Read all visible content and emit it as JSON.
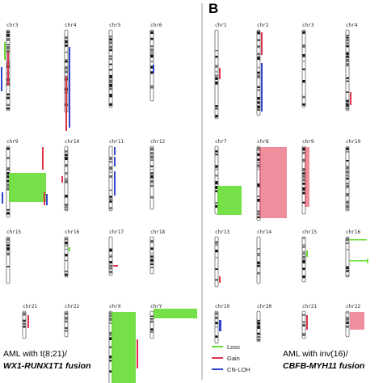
{
  "panel_b": {
    "letter": "B"
  },
  "caption_a": {
    "line1": "AML with t(8;21)/",
    "line2": "WX1-RUNX1T1 fusion"
  },
  "caption_b": {
    "line1": "AML with inv(16)/",
    "line2": "CBFB-MYH11 fusion"
  },
  "legend": {
    "items": [
      {
        "label": "Loss",
        "color": "#66dd33"
      },
      {
        "label": "Gain",
        "color": "#e0334d"
      },
      {
        "label": "CN-LOH",
        "color": "#3344cc"
      }
    ]
  },
  "colors": {
    "loss": "#66dd33",
    "gain": "#e0334d",
    "cnloh": "#3344cc",
    "divider": "#999999"
  },
  "panel_a": {
    "chromosomes": [
      {
        "name": "chr3"
      },
      {
        "name": "chr4"
      },
      {
        "name": "chr5"
      },
      {
        "name": "chr6"
      },
      {
        "name": "chr9"
      },
      {
        "name": "chr10"
      },
      {
        "name": "chr11"
      },
      {
        "name": "chr12"
      },
      {
        "name": "chr15"
      },
      {
        "name": "chr16"
      },
      {
        "name": "chr17"
      },
      {
        "name": "chr18"
      },
      {
        "name": "chr21"
      },
      {
        "name": "chr22"
      },
      {
        "name": "chrX"
      },
      {
        "name": "chrY"
      }
    ]
  },
  "panel_b_chroms": {
    "chromosomes": [
      {
        "name": "chr1"
      },
      {
        "name": "chr2"
      },
      {
        "name": "chr3"
      },
      {
        "name": "chr4"
      },
      {
        "name": "chr7"
      },
      {
        "name": "chr8"
      },
      {
        "name": "chr9"
      },
      {
        "name": "chr10"
      },
      {
        "name": "chr13"
      },
      {
        "name": "chr14"
      },
      {
        "name": "chr15"
      },
      {
        "name": "chr16"
      },
      {
        "name": "chr19"
      },
      {
        "name": "chr20"
      },
      {
        "name": "chr21"
      },
      {
        "name": "chr22"
      }
    ]
  }
}
